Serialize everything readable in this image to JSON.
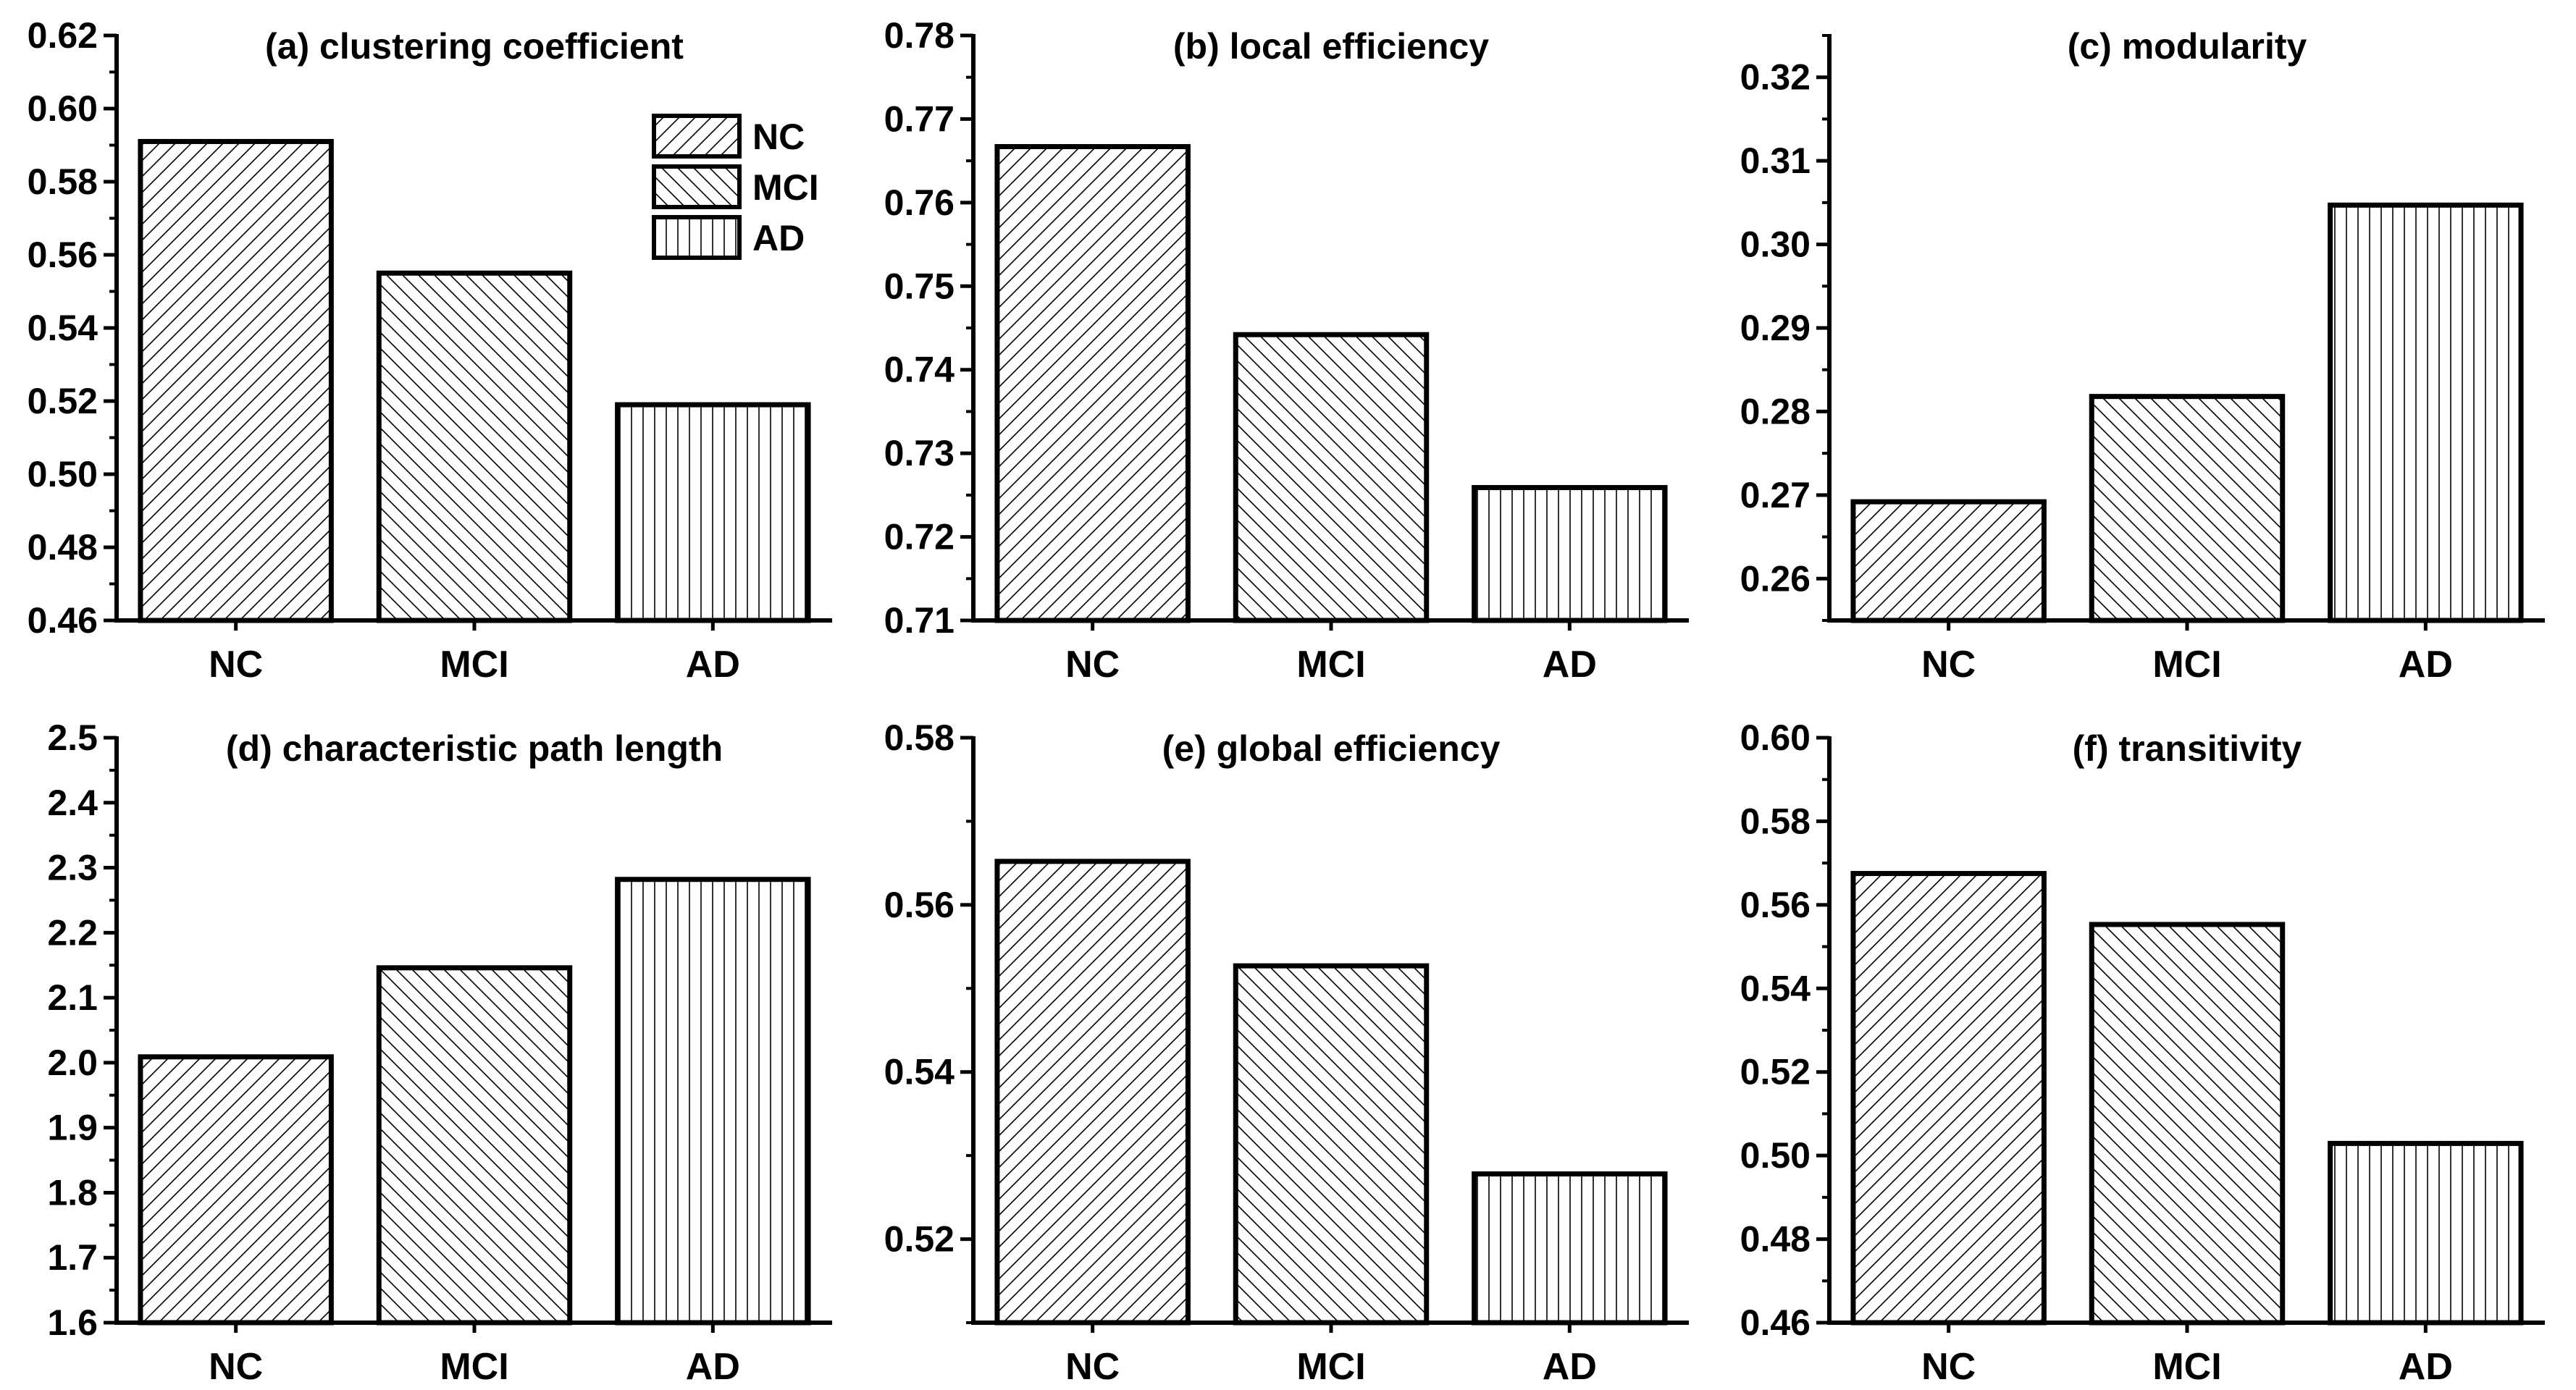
{
  "colors": {
    "bar_fill": "#ffffff",
    "stroke": "#000000",
    "background": "#ffffff"
  },
  "legend": {
    "entries": [
      {
        "label": "NC",
        "pattern": "diag-up"
      },
      {
        "label": "MCI",
        "pattern": "diag-down"
      },
      {
        "label": "AD",
        "pattern": "vertical"
      }
    ]
  },
  "chart_data": [
    {
      "type": "bar",
      "title": "(a) clustering coefficient",
      "categories": [
        "NC",
        "MCI",
        "AD"
      ],
      "values": [
        0.591,
        0.555,
        0.519
      ],
      "patterns": [
        "diag-up",
        "diag-down",
        "vertical"
      ],
      "ylim": [
        0.46,
        0.62
      ],
      "yticks": [
        "0.46",
        "0.48",
        "0.50",
        "0.52",
        "0.54",
        "0.56",
        "0.58",
        "0.60",
        "0.62"
      ],
      "minor_ticks": true
    },
    {
      "type": "bar",
      "title": "(b) local efficiency",
      "categories": [
        "NC",
        "MCI",
        "AD"
      ],
      "values": [
        0.7667,
        0.7442,
        0.7259
      ],
      "patterns": [
        "diag-up",
        "diag-down",
        "vertical"
      ],
      "ylim": [
        0.71,
        0.78
      ],
      "yticks": [
        "0.71",
        "0.72",
        "0.73",
        "0.74",
        "0.75",
        "0.76",
        "0.77",
        "0.78"
      ],
      "minor_ticks": true
    },
    {
      "type": "bar",
      "title": "(c) modularity",
      "categories": [
        "NC",
        "MCI",
        "AD"
      ],
      "values": [
        0.2692,
        0.2818,
        0.3047
      ],
      "patterns": [
        "diag-up",
        "diag-down",
        "vertical"
      ],
      "ylim": [
        0.255,
        0.325
      ],
      "yticks": [
        "0.26",
        "0.27",
        "0.28",
        "0.29",
        "0.30",
        "0.31",
        "0.32"
      ],
      "minor_ticks": true
    },
    {
      "type": "bar",
      "title": "(d) characteristic path length",
      "categories": [
        "NC",
        "MCI",
        "AD"
      ],
      "values": [
        2.009,
        2.146,
        2.282
      ],
      "patterns": [
        "diag-up",
        "diag-down",
        "vertical"
      ],
      "ylim": [
        1.6,
        2.5
      ],
      "yticks": [
        "1.6",
        "1.7",
        "1.8",
        "1.9",
        "2.0",
        "2.1",
        "2.2",
        "2.3",
        "2.4",
        "2.5"
      ],
      "minor_ticks": true
    },
    {
      "type": "bar",
      "title": "(e) global efficiency",
      "categories": [
        "NC",
        "MCI",
        "AD"
      ],
      "values": [
        0.5652,
        0.5527,
        0.5278
      ],
      "patterns": [
        "diag-up",
        "diag-down",
        "vertical"
      ],
      "ylim": [
        0.51,
        0.58
      ],
      "yticks": [
        "0.52",
        "0.54",
        "0.56",
        "0.58"
      ],
      "minor_ticks": true
    },
    {
      "type": "bar",
      "title": "(f) transitivity",
      "categories": [
        "NC",
        "MCI",
        "AD"
      ],
      "values": [
        0.5675,
        0.5553,
        0.5029
      ],
      "patterns": [
        "diag-up",
        "diag-down",
        "vertical"
      ],
      "ylim": [
        0.46,
        0.6
      ],
      "yticks": [
        "0.46",
        "0.48",
        "0.50",
        "0.52",
        "0.54",
        "0.56",
        "0.58",
        "0.60"
      ],
      "minor_ticks": true
    }
  ]
}
